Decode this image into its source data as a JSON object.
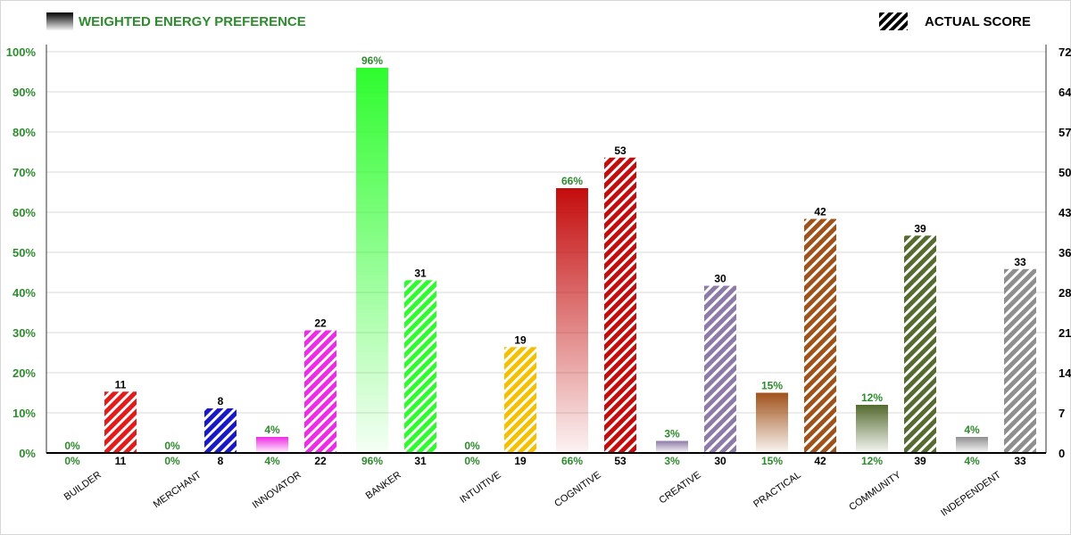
{
  "chart_data": {
    "type": "bar",
    "legend": [
      {
        "label": "WEIGHTED ENERGY PREFERENCE",
        "color": "#2e8b2e"
      },
      {
        "label": "ACTUAL SCORE",
        "color": "#000000"
      }
    ],
    "categories": [
      "BUILDER",
      "MERCHANT",
      "INNOVATOR",
      "BANKER",
      "INTUITIVE",
      "COGNITIVE",
      "CREATIVE",
      "PRACTICAL",
      "COMMUNITY",
      "INDEPENDENT"
    ],
    "colors": [
      "#e31b1b",
      "#1919c8",
      "#ee2be6",
      "#2efc2e",
      "#f5c000",
      "#c40c0c",
      "#8e7aa8",
      "#a0521b",
      "#556b2f",
      "#8f8f8f"
    ],
    "series": [
      {
        "name": "WEIGHTED ENERGY PREFERENCE",
        "axis": "left",
        "values": [
          0,
          0,
          4,
          96,
          0,
          66,
          3,
          15,
          12,
          4
        ],
        "labels": [
          "0%",
          "0%",
          "4%",
          "96%",
          "0%",
          "66%",
          "3%",
          "15%",
          "12%",
          "4%"
        ]
      },
      {
        "name": "ACTUAL SCORE",
        "axis": "right",
        "values": [
          11,
          8,
          22,
          31,
          19,
          53,
          30,
          42,
          39,
          33
        ],
        "labels": [
          "11",
          "8",
          "22",
          "31",
          "19",
          "53",
          "30",
          "42",
          "39",
          "33"
        ]
      }
    ],
    "left_axis": {
      "ylim": [
        0,
        100
      ],
      "ticks": [
        0,
        10,
        20,
        30,
        40,
        50,
        60,
        70,
        80,
        90,
        100
      ],
      "tick_labels": [
        "0%",
        "10%",
        "20%",
        "30%",
        "40%",
        "50%",
        "60%",
        "70%",
        "80%",
        "90%",
        "100%"
      ],
      "color": "#2e8b2e"
    },
    "right_axis": {
      "ylim": [
        0,
        72
      ],
      "tick_labels": [
        "0",
        "7",
        "14",
        "21",
        "28",
        "36",
        "43",
        "50",
        "57",
        "64",
        "72"
      ],
      "color": "#000000"
    },
    "grid": true
  }
}
